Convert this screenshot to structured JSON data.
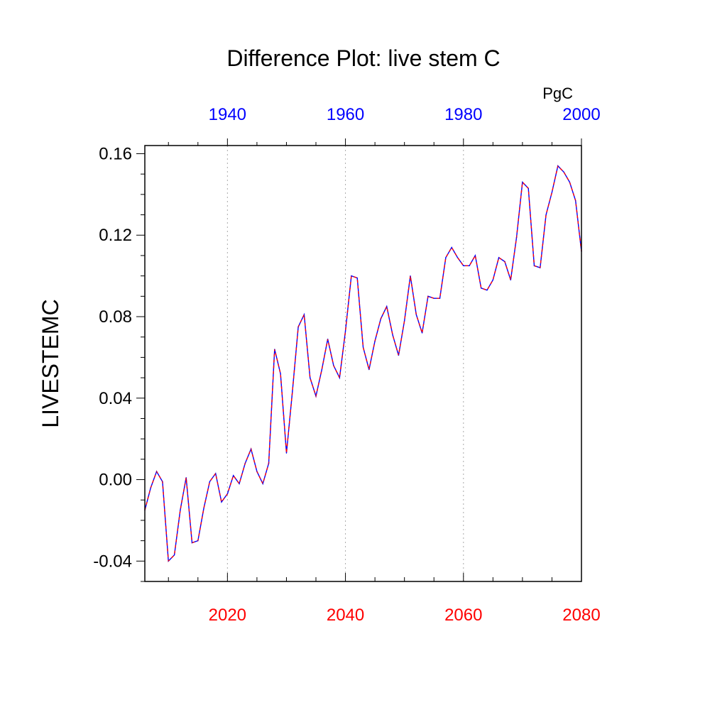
{
  "chart_data": {
    "type": "line",
    "title": "Difference Plot: live stem C",
    "ylabel": "LIVESTEMC",
    "units": "PgC",
    "xlim": [
      2006,
      2080
    ],
    "ylim": [
      -0.05,
      0.164
    ],
    "bottom_axis": {
      "ticks": [
        "2020",
        "2040",
        "2060",
        "2080"
      ],
      "color": "#ff0000"
    },
    "top_axis": {
      "ticks": [
        "1940",
        "1960",
        "1980",
        "2000"
      ],
      "color": "#0000ff"
    },
    "y_ticks": [
      "-0.04",
      "0.00",
      "0.04",
      "0.08",
      "0.12",
      "0.16"
    ],
    "series": [
      {
        "line_colors": [
          "#0000ff",
          "#ff0000"
        ],
        "x": [
          2006,
          2007,
          2008,
          2009,
          2010,
          2011,
          2012,
          2013,
          2014,
          2015,
          2016,
          2017,
          2018,
          2019,
          2020,
          2021,
          2022,
          2023,
          2024,
          2025,
          2026,
          2027,
          2028,
          2029,
          2030,
          2031,
          2032,
          2033,
          2034,
          2035,
          2036,
          2037,
          2038,
          2039,
          2040,
          2041,
          2042,
          2043,
          2044,
          2045,
          2046,
          2047,
          2048,
          2049,
          2050,
          2051,
          2052,
          2053,
          2054,
          2055,
          2056,
          2057,
          2058,
          2059,
          2060,
          2061,
          2062,
          2063,
          2064,
          2065,
          2066,
          2067,
          2068,
          2069,
          2070,
          2071,
          2072,
          2073,
          2074,
          2075,
          2076,
          2077,
          2078,
          2079,
          2080
        ],
        "y": [
          -0.015,
          -0.004,
          0.004,
          -0.001,
          -0.04,
          -0.037,
          -0.015,
          0.001,
          -0.031,
          -0.03,
          -0.014,
          -0.001,
          0.003,
          -0.011,
          -0.007,
          0.002,
          -0.002,
          0.008,
          0.015,
          0.004,
          -0.002,
          0.008,
          0.064,
          0.052,
          0.013,
          0.043,
          0.075,
          0.081,
          0.05,
          0.041,
          0.054,
          0.069,
          0.056,
          0.05,
          0.073,
          0.1,
          0.099,
          0.065,
          0.054,
          0.068,
          0.079,
          0.085,
          0.071,
          0.061,
          0.078,
          0.1,
          0.081,
          0.072,
          0.09,
          0.089,
          0.089,
          0.109,
          0.114,
          0.109,
          0.105,
          0.105,
          0.11,
          0.094,
          0.093,
          0.098,
          0.109,
          0.107,
          0.098,
          0.119,
          0.146,
          0.143,
          0.105,
          0.104,
          0.13,
          0.141,
          0.154,
          0.151,
          0.146,
          0.137,
          0.112
        ]
      }
    ],
    "grid": "vertical dashed at bottom ticks"
  }
}
